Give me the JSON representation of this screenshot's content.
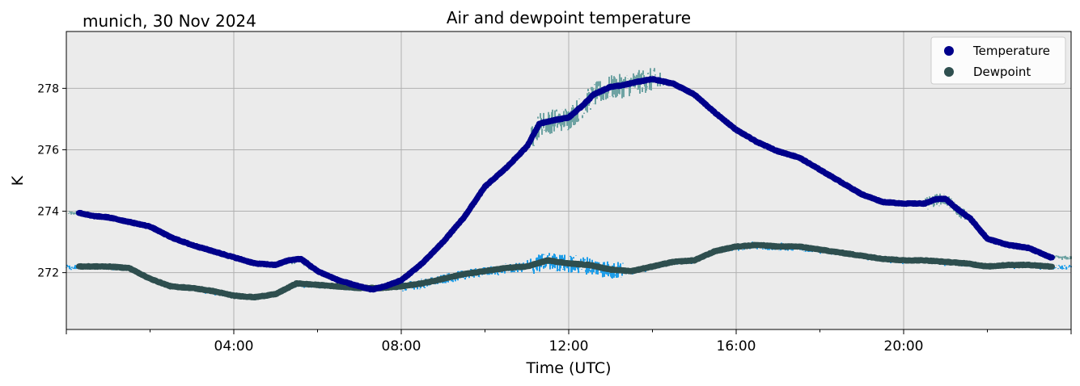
{
  "chart_data": {
    "type": "scatter",
    "title": "Air and dewpoint temperature",
    "subtitle": "munich, 30 Nov 2024",
    "xlabel": "Time (UTC)",
    "ylabel": "K",
    "xlim": [
      0,
      24
    ],
    "ylim": [
      270.15,
      279.85
    ],
    "x_ticks": [
      4,
      8,
      12,
      16,
      20
    ],
    "x_tick_labels": [
      "04:00",
      "08:00",
      "12:00",
      "16:00",
      "20:00"
    ],
    "y_ticks": [
      272,
      274,
      276,
      278
    ],
    "y_tick_labels": [
      "272",
      "274",
      "276",
      "278"
    ],
    "grid": true,
    "legend_position": "top-right",
    "colors": {
      "background": "#ebebeb",
      "grid": "#b0b0b0",
      "temperature": "#00008b",
      "temperature_raw": "#6fa3a3",
      "dewpoint": "#2f4f4f",
      "dewpoint_raw": "#1e9de8"
    },
    "series": [
      {
        "name": "Temperature",
        "x": [
          0.3,
          0.6,
          1.0,
          1.5,
          2.0,
          2.5,
          3.0,
          3.5,
          4.0,
          4.5,
          5.0,
          5.3,
          5.6,
          6.0,
          6.5,
          7.0,
          7.3,
          7.6,
          8.0,
          8.5,
          9.0,
          9.5,
          10.0,
          10.5,
          11.0,
          11.3,
          11.6,
          12.0,
          12.3,
          12.6,
          13.0,
          13.3,
          13.6,
          14.0,
          14.5,
          15.0,
          15.5,
          16.0,
          16.5,
          17.0,
          17.5,
          18.0,
          18.5,
          19.0,
          19.5,
          20.0,
          20.5,
          20.8,
          21.0,
          21.3,
          21.6,
          22.0,
          22.5,
          23.0,
          23.5
        ],
        "y": [
          273.95,
          273.85,
          273.8,
          273.65,
          273.5,
          273.15,
          272.9,
          272.7,
          272.5,
          272.3,
          272.25,
          272.4,
          272.45,
          272.05,
          271.75,
          271.55,
          271.45,
          271.55,
          271.75,
          272.3,
          273.0,
          273.8,
          274.8,
          275.4,
          276.1,
          276.85,
          276.95,
          277.05,
          277.4,
          277.8,
          278.05,
          278.1,
          278.2,
          278.3,
          278.15,
          277.8,
          277.2,
          276.65,
          276.25,
          275.95,
          275.75,
          275.35,
          274.95,
          274.55,
          274.3,
          274.25,
          274.25,
          274.4,
          274.4,
          274.05,
          273.75,
          273.1,
          272.9,
          272.8,
          272.5
        ]
      },
      {
        "name": "Dewpoint",
        "x": [
          0.3,
          1.0,
          1.5,
          2.0,
          2.5,
          3.0,
          3.5,
          4.0,
          4.5,
          5.0,
          5.5,
          6.0,
          6.5,
          7.0,
          7.5,
          8.0,
          8.5,
          9.0,
          9.5,
          10.0,
          10.5,
          11.0,
          11.5,
          12.0,
          12.5,
          13.0,
          13.5,
          14.0,
          14.5,
          15.0,
          15.5,
          16.0,
          16.5,
          17.0,
          17.5,
          18.0,
          18.5,
          19.0,
          19.5,
          20.0,
          20.5,
          21.0,
          21.5,
          22.0,
          22.5,
          23.0,
          23.5
        ],
        "y": [
          272.2,
          272.2,
          272.15,
          271.8,
          271.55,
          271.5,
          271.4,
          271.25,
          271.2,
          271.3,
          271.65,
          271.6,
          271.55,
          271.5,
          271.5,
          271.55,
          271.65,
          271.8,
          271.95,
          272.05,
          272.15,
          272.2,
          272.4,
          272.3,
          272.25,
          272.1,
          272.05,
          272.2,
          272.35,
          272.4,
          272.7,
          272.85,
          272.9,
          272.85,
          272.85,
          272.75,
          272.65,
          272.55,
          272.45,
          272.4,
          272.4,
          272.35,
          272.3,
          272.2,
          272.25,
          272.25,
          272.2
        ]
      }
    ]
  }
}
